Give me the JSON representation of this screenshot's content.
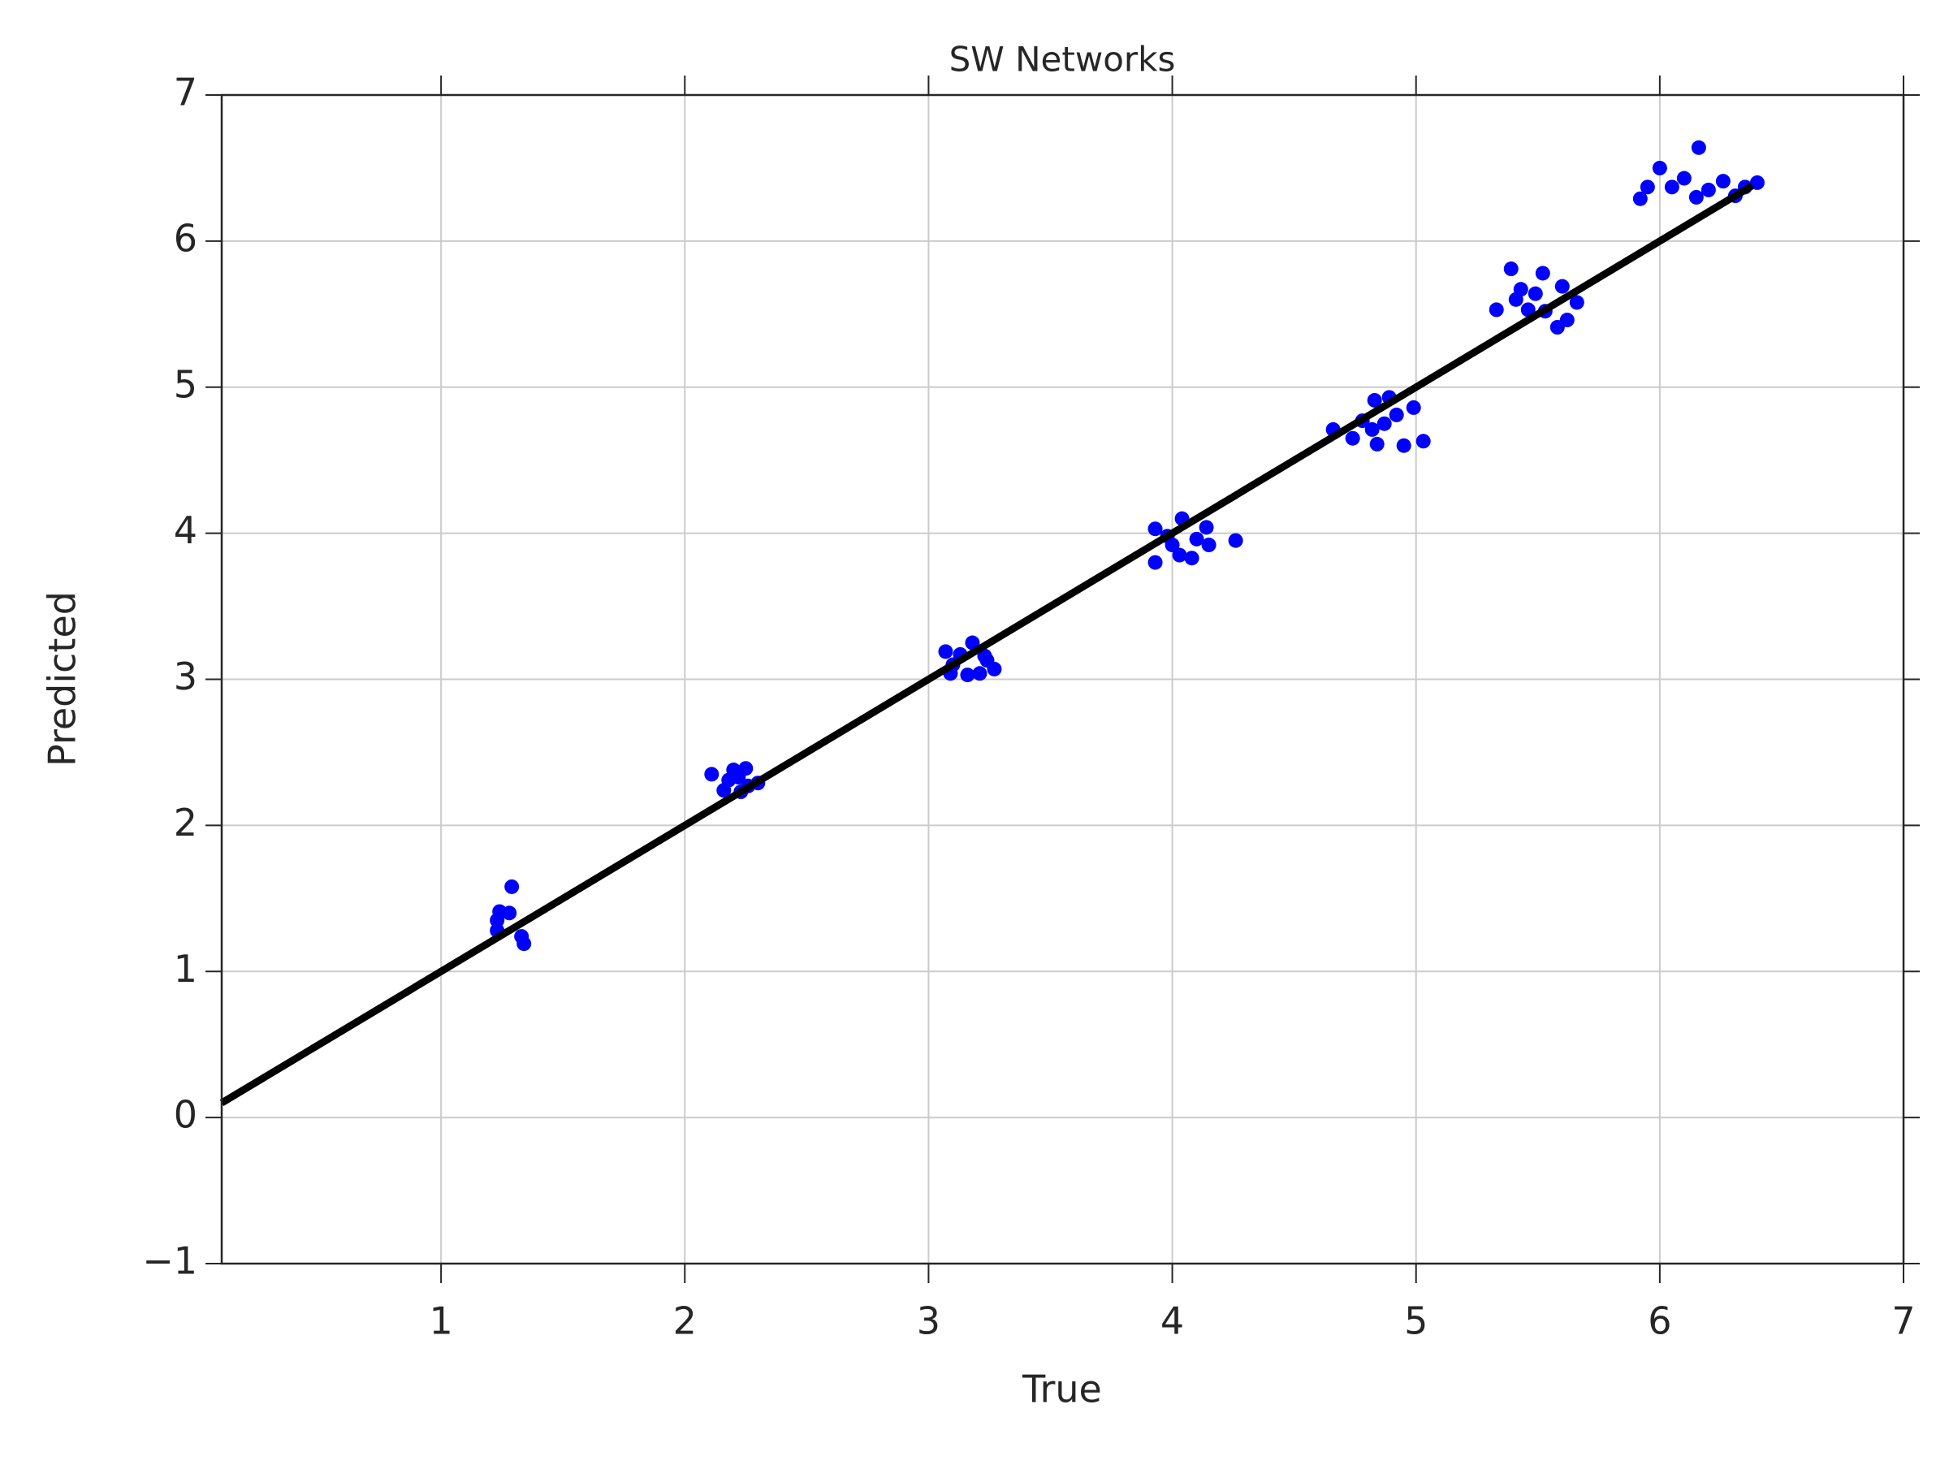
{
  "chart_data": {
    "type": "scatter",
    "title": "SW Networks",
    "xlabel": "True",
    "ylabel": "Predicted",
    "xlim": [
      0.1,
      7
    ],
    "ylim": [
      -1,
      7
    ],
    "xticks": [
      1,
      2,
      3,
      4,
      5,
      6,
      7
    ],
    "yticks": [
      {
        "value": -1,
        "label": "−1"
      },
      0,
      1,
      2,
      3,
      4,
      5,
      6,
      7
    ],
    "grid": true,
    "series": [
      {
        "type": "scatter",
        "color": "#0000ff",
        "x": [
          1.24,
          1.29,
          1.28,
          1.23,
          1.23,
          1.33,
          1.34,
          2.11,
          2.16,
          2.2,
          2.25,
          2.3,
          2.23,
          2.18,
          2.22,
          2.26,
          3.07,
          3.18,
          3.27,
          3.16,
          3.23,
          3.1,
          3.13,
          3.21,
          3.24,
          3.09,
          3.93,
          3.93,
          4.04,
          4.26,
          4.14,
          4.08,
          4.0,
          4.1,
          4.15,
          3.98,
          4.03,
          4.66,
          4.83,
          4.89,
          5.03,
          4.95,
          4.99,
          4.74,
          4.82,
          4.84,
          4.92,
          4.78,
          4.87,
          5.33,
          5.39,
          5.52,
          5.66,
          5.62,
          5.58,
          5.46,
          5.49,
          5.41,
          5.53,
          5.6,
          5.43,
          5.92,
          6.0,
          6.16,
          6.4,
          5.95,
          6.05,
          6.1,
          6.2,
          6.26,
          6.15,
          6.31,
          6.35
        ],
        "values": [
          1.41,
          1.58,
          1.4,
          1.28,
          1.35,
          1.24,
          1.19,
          2.35,
          2.24,
          2.38,
          2.39,
          2.29,
          2.23,
          2.31,
          2.33,
          2.27,
          3.19,
          3.25,
          3.07,
          3.03,
          3.16,
          3.1,
          3.17,
          3.04,
          3.13,
          3.04,
          4.03,
          3.8,
          4.1,
          3.95,
          4.04,
          3.83,
          3.92,
          3.96,
          3.92,
          3.98,
          3.85,
          4.71,
          4.91,
          4.93,
          4.63,
          4.6,
          4.86,
          4.65,
          4.71,
          4.61,
          4.81,
          4.77,
          4.75,
          5.53,
          5.81,
          5.78,
          5.58,
          5.46,
          5.41,
          5.53,
          5.64,
          5.6,
          5.52,
          5.69,
          5.67,
          6.29,
          6.5,
          6.64,
          6.4,
          6.37,
          6.37,
          6.43,
          6.35,
          6.41,
          6.3,
          6.31,
          6.37
        ]
      },
      {
        "type": "line",
        "color": "#000000",
        "x": [
          0.1,
          6.38
        ],
        "values": [
          0.1,
          6.38
        ]
      }
    ]
  }
}
